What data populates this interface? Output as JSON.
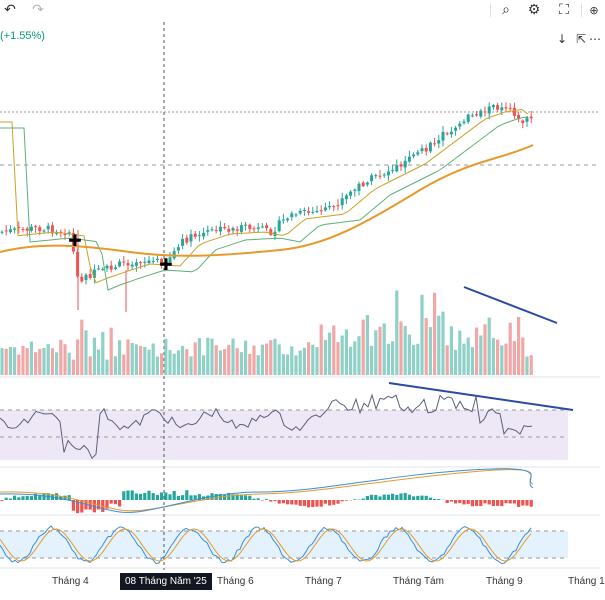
{
  "toolbar": {
    "undo_icon": "undo-icon",
    "redo_icon": "redo-icon",
    "items": [
      {
        "icon": "quick-search-icon",
        "glyph": "⌕"
      },
      {
        "icon": "settings-gear-icon",
        "glyph": "⚙"
      },
      {
        "icon": "fullscreen-icon",
        "glyph": "⛶"
      }
    ]
  },
  "header": {
    "change_text": "(+1.55%)"
  },
  "controls": {
    "down_glyph": "↓",
    "collapse_glyph": "⇱",
    "more_glyph": "⋯"
  },
  "colors": {
    "up": "#26a69a",
    "down": "#ef5350",
    "vol_up": "#8fd1c7",
    "vol_down": "#f2a7a7",
    "ma_fast": "#c9a227",
    "ma_mid": "#5fae78",
    "ma_slow": "#e69a2a",
    "rsi_line": "#7e57c2",
    "rsi_band": "#ede7f6",
    "stoch_band": "#e3f2fd",
    "trend_line": "#2a4aa3"
  },
  "xaxis": {
    "labels": [
      "Tháng 4",
      "Tháng 6",
      "Tháng 7",
      "Tháng Tám",
      "Tháng 9",
      "Tháng 1"
    ],
    "crosshair_label": "08 Tháng Năm '25"
  }
}
